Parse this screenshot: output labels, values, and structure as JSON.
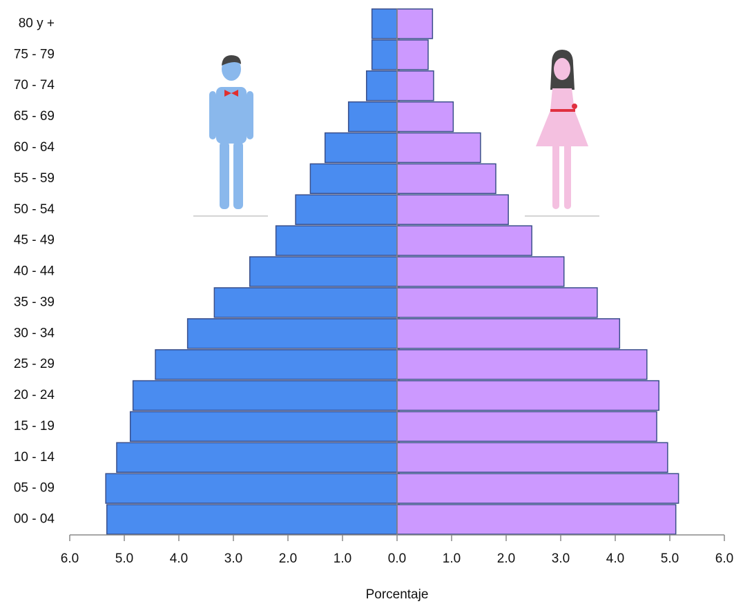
{
  "chart_data": {
    "type": "pyramid",
    "categories": [
      "80 y +",
      "75 - 79",
      "70 - 74",
      "65 - 69",
      "60 - 64",
      "55 - 59",
      "50 - 54",
      "45 - 49",
      "40 - 44",
      "35 - 39",
      "30 - 34",
      "25 - 29",
      "20 - 24",
      "15 - 19",
      "10 - 14",
      "05 - 09",
      "00 - 04"
    ],
    "series": [
      {
        "color": "#4a8cf0",
        "values": [
          -0.46,
          -0.46,
          -0.56,
          -0.89,
          -1.32,
          -1.59,
          -1.86,
          -2.22,
          -2.7,
          -3.35,
          -3.84,
          -4.43,
          -4.84,
          -4.89,
          -5.14,
          -5.34,
          -5.32
        ]
      },
      {
        "color": "#cc99ff",
        "values": [
          0.65,
          0.57,
          0.67,
          1.03,
          1.53,
          1.81,
          2.04,
          2.47,
          3.06,
          3.67,
          4.08,
          4.58,
          4.8,
          4.76,
          4.96,
          5.16,
          5.11
        ]
      }
    ],
    "xlim": [
      -6,
      6
    ],
    "xticks": [
      {
        "value": -6,
        "label": "6.0"
      },
      {
        "value": -5,
        "label": "5.0"
      },
      {
        "value": -4,
        "label": "4.0"
      },
      {
        "value": -3,
        "label": "3.0"
      },
      {
        "value": -2,
        "label": "2.0"
      },
      {
        "value": -1,
        "label": "1.0"
      },
      {
        "value": 0,
        "label": "0.0"
      },
      {
        "value": 1,
        "label": "1.0"
      },
      {
        "value": 2,
        "label": "2.0"
      },
      {
        "value": 3,
        "label": "3.0"
      },
      {
        "value": 4,
        "label": "4.0"
      },
      {
        "value": 5,
        "label": "5.0"
      },
      {
        "value": 6,
        "label": "6.0"
      }
    ],
    "xlabel": "Porcentaje"
  }
}
